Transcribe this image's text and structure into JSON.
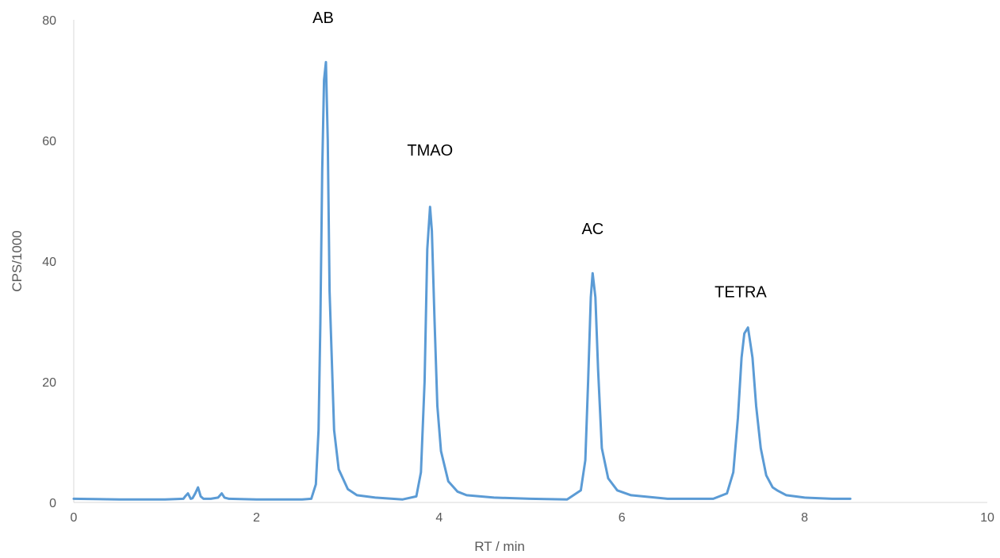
{
  "chart_data": {
    "type": "line",
    "title": "",
    "xlabel": "RT / min",
    "ylabel": "CPS/1000",
    "xlim": [
      0,
      10
    ],
    "ylim": [
      0,
      80
    ],
    "xticks": [
      0,
      2,
      4,
      6,
      8,
      10
    ],
    "yticks": [
      0,
      20,
      40,
      60,
      80
    ],
    "grid": false,
    "legend": "none",
    "colors": {
      "line": "#5b9bd5",
      "axis": "#d9d9d9",
      "tick_text": "#595959",
      "annotation_text": "#000000"
    },
    "series": [
      {
        "x": [
          0,
          0.5,
          1.0,
          1.2,
          1.22,
          1.25,
          1.28,
          1.3,
          1.33,
          1.36,
          1.39,
          1.42,
          1.5,
          1.58,
          1.62,
          1.65,
          1.7,
          2.0,
          2.5,
          2.6,
          2.65,
          2.68,
          2.7,
          2.72,
          2.74,
          2.76,
          2.78,
          2.8,
          2.85,
          2.9,
          3.0,
          3.1,
          3.3,
          3.6,
          3.75,
          3.8,
          3.84,
          3.87,
          3.9,
          3.92,
          3.95,
          3.98,
          4.02,
          4.1,
          4.2,
          4.3,
          4.6,
          5.0,
          5.4,
          5.55,
          5.6,
          5.63,
          5.66,
          5.68,
          5.71,
          5.74,
          5.78,
          5.85,
          5.95,
          6.1,
          6.5,
          7.0,
          7.15,
          7.22,
          7.27,
          7.31,
          7.34,
          7.38,
          7.4,
          7.43,
          7.47,
          7.52,
          7.58,
          7.65,
          7.7,
          7.8,
          8.0,
          8.3,
          8.5
        ],
        "y": [
          0.6,
          0.5,
          0.5,
          0.6,
          1.0,
          1.5,
          0.6,
          0.7,
          1.5,
          2.5,
          1.0,
          0.6,
          0.6,
          0.8,
          1.5,
          0.8,
          0.6,
          0.5,
          0.5,
          0.6,
          3.0,
          12.0,
          30.0,
          55.0,
          70.0,
          73.0,
          60.0,
          35.0,
          12.0,
          5.5,
          2.2,
          1.2,
          0.8,
          0.5,
          1.0,
          5.0,
          20.0,
          42.0,
          49.0,
          45.0,
          30.0,
          16.0,
          8.5,
          3.5,
          1.8,
          1.2,
          0.8,
          0.6,
          0.5,
          2.0,
          7.0,
          20.0,
          34.0,
          38.0,
          34.0,
          22.0,
          9.0,
          4.0,
          2.0,
          1.2,
          0.6,
          0.6,
          1.5,
          5.0,
          14.0,
          24.0,
          28.0,
          29.0,
          27.0,
          24.0,
          16.0,
          9.0,
          4.5,
          2.5,
          2.0,
          1.2,
          0.8,
          0.6,
          0.6
        ]
      }
    ],
    "annotations": [
      {
        "text": "AB",
        "x": 2.73,
        "y": 79.5
      },
      {
        "text": "TMAO",
        "x": 3.9,
        "y": 57.5
      },
      {
        "text": "AC",
        "x": 5.68,
        "y": 44.5
      },
      {
        "text": "TETRA",
        "x": 7.3,
        "y": 34.0
      }
    ]
  }
}
